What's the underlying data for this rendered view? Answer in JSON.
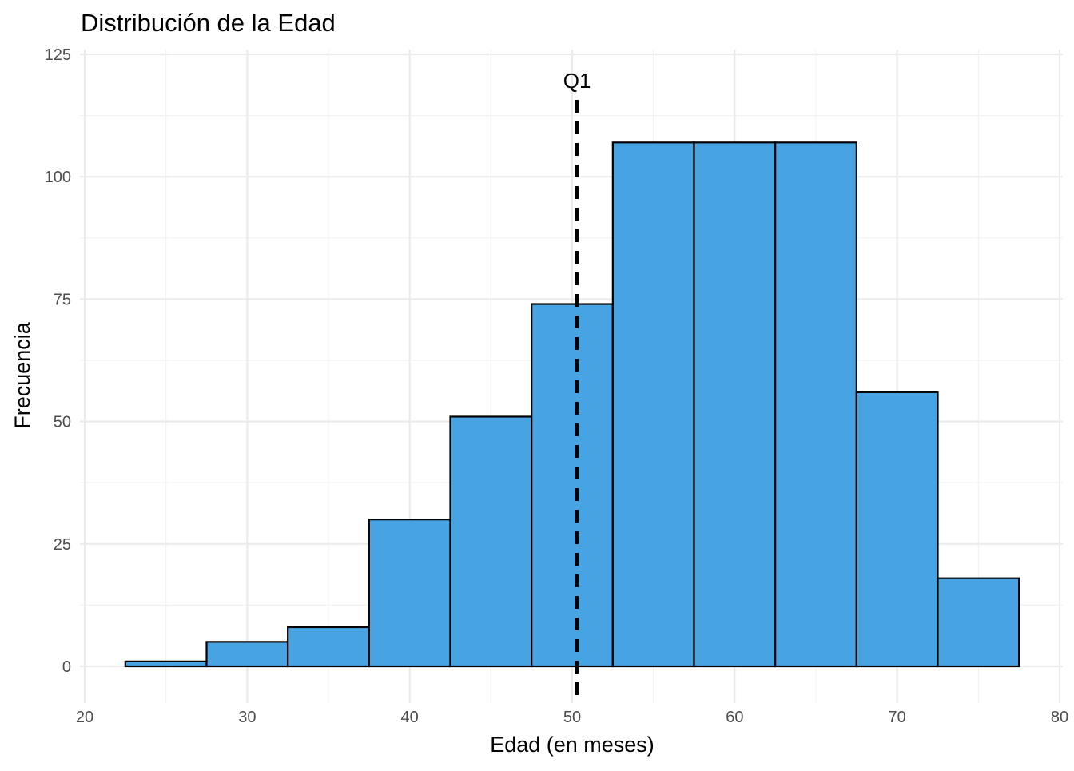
{
  "chart_data": {
    "type": "bar",
    "title": "Distribución de la Edad",
    "xlabel": "Edad (en meses)",
    "ylabel": "Frecuencia",
    "xlim": [
      20,
      80
    ],
    "ylim": [
      0,
      125
    ],
    "x_ticks": [
      20,
      30,
      40,
      50,
      60,
      70,
      80
    ],
    "y_ticks": [
      0,
      25,
      50,
      75,
      100,
      125
    ],
    "grid": true,
    "bin_width": 5,
    "bins": [
      {
        "start": 22.5,
        "end": 27.5,
        "value": 1
      },
      {
        "start": 27.5,
        "end": 32.5,
        "value": 5
      },
      {
        "start": 32.5,
        "end": 37.5,
        "value": 8
      },
      {
        "start": 37.5,
        "end": 42.5,
        "value": 30
      },
      {
        "start": 42.5,
        "end": 47.5,
        "value": 51
      },
      {
        "start": 47.5,
        "end": 52.5,
        "value": 74
      },
      {
        "start": 52.5,
        "end": 57.5,
        "value": 107
      },
      {
        "start": 57.5,
        "end": 62.5,
        "value": 107
      },
      {
        "start": 62.5,
        "end": 67.5,
        "value": 107
      },
      {
        "start": 67.5,
        "end": 72.5,
        "value": 56
      },
      {
        "start": 72.5,
        "end": 77.5,
        "value": 18
      }
    ],
    "reference_line": {
      "label": "Q1",
      "x": 50.3,
      "style": "dashed"
    },
    "colors": {
      "bar_fill": "#48a3e2",
      "bar_stroke": "#000000",
      "grid_major": "#ebebeb",
      "grid_minor": "#f2f2f2",
      "ref_line": "#000000"
    }
  }
}
